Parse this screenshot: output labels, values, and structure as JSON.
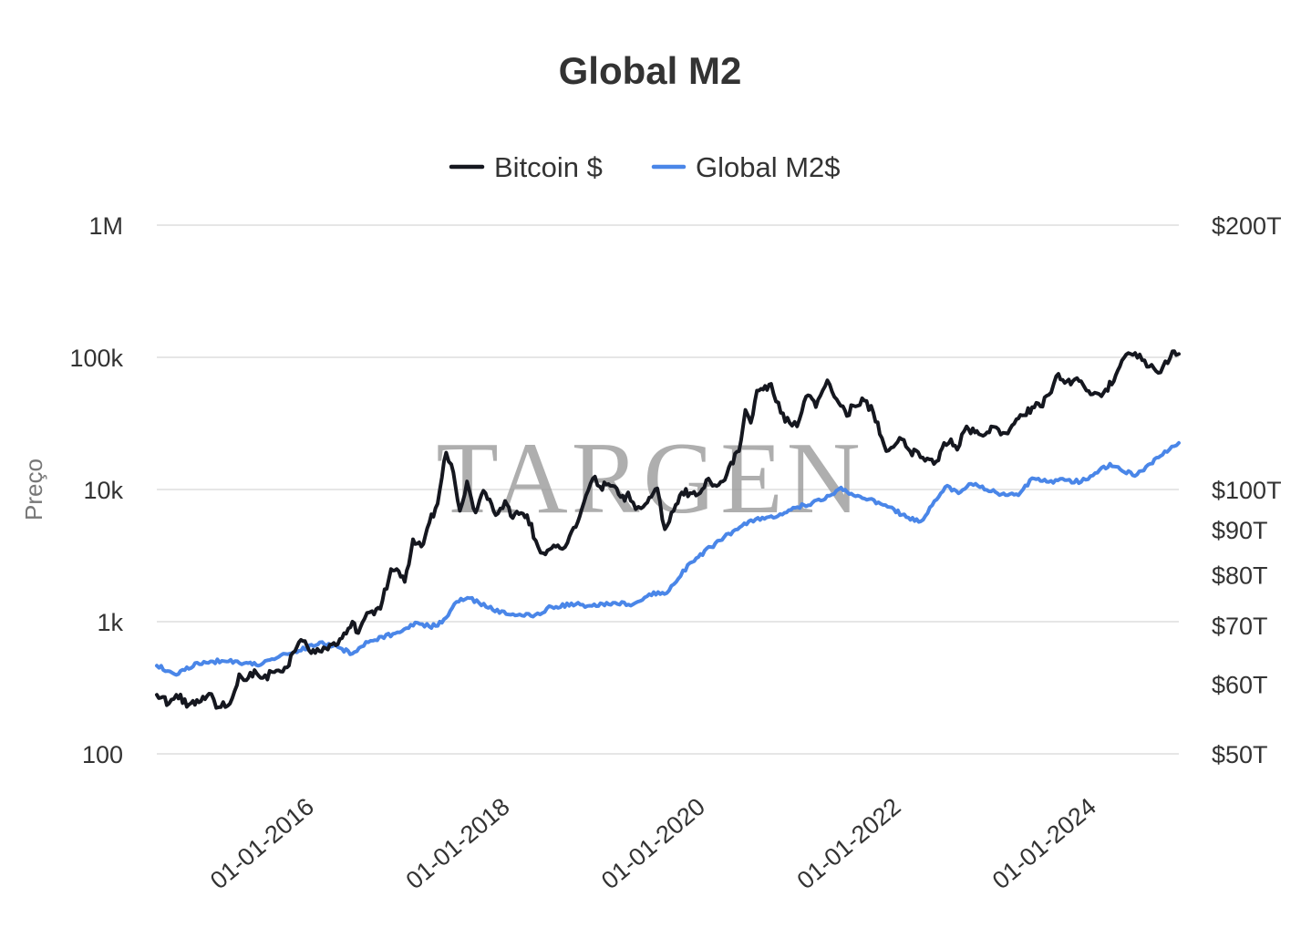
{
  "chart_data": {
    "type": "line",
    "title": "Global M2",
    "ylabel": "Preço",
    "xlabel": "",
    "watermark": "TARGEN",
    "x_range": [
      "2015-01-01",
      "2025-06-15"
    ],
    "x_ticks": [
      {
        "date": "2016-01-01",
        "label": "01-01-2016"
      },
      {
        "date": "2018-01-01",
        "label": "01-01-2018"
      },
      {
        "date": "2020-01-01",
        "label": "01-01-2020"
      },
      {
        "date": "2022-01-01",
        "label": "01-01-2022"
      },
      {
        "date": "2024-01-01",
        "label": "01-01-2024"
      }
    ],
    "y_left": {
      "scale": "log",
      "range": [
        100,
        1000000
      ],
      "ticks": [
        {
          "value": 100,
          "label": "100"
        },
        {
          "value": 1000,
          "label": "1k"
        },
        {
          "value": 10000,
          "label": "10k"
        },
        {
          "value": 100000,
          "label": "100k"
        },
        {
          "value": 1000000,
          "label": "1M"
        }
      ]
    },
    "y_right": {
      "scale": "log",
      "unit": "trillion USD",
      "ticks": [
        {
          "value": 50,
          "label": "$50T"
        },
        {
          "value": 60,
          "label": "$60T"
        },
        {
          "value": 70,
          "label": "$70T"
        },
        {
          "value": 80,
          "label": "$80T"
        },
        {
          "value": 90,
          "label": "$90T"
        },
        {
          "value": 100,
          "label": "$100T"
        },
        {
          "value": 200,
          "label": "$200T"
        }
      ]
    },
    "legend": {
      "position": "top-center"
    },
    "series": [
      {
        "name": "Bitcoin $",
        "axis": "left",
        "color": "#15171f",
        "points": [
          [
            "2015-01-01",
            280
          ],
          [
            "2015-02-15",
            240
          ],
          [
            "2015-03-15",
            280
          ],
          [
            "2015-05-01",
            236
          ],
          [
            "2015-06-15",
            250
          ],
          [
            "2015-07-15",
            285
          ],
          [
            "2015-08-20",
            225
          ],
          [
            "2015-10-01",
            240
          ],
          [
            "2015-11-05",
            400
          ],
          [
            "2015-12-01",
            360
          ],
          [
            "2016-01-01",
            430
          ],
          [
            "2016-02-01",
            375
          ],
          [
            "2016-03-15",
            415
          ],
          [
            "2016-05-01",
            450
          ],
          [
            "2016-06-15",
            700
          ],
          [
            "2016-07-15",
            655
          ],
          [
            "2016-08-15",
            580
          ],
          [
            "2016-10-01",
            615
          ],
          [
            "2016-11-15",
            740
          ],
          [
            "2017-01-01",
            1000
          ],
          [
            "2017-01-15",
            830
          ],
          [
            "2017-02-15",
            1050
          ],
          [
            "2017-03-15",
            1200
          ],
          [
            "2017-04-15",
            1250
          ],
          [
            "2017-05-25",
            2500
          ],
          [
            "2017-06-15",
            2500
          ],
          [
            "2017-07-15",
            2000
          ],
          [
            "2017-08-15",
            4200
          ],
          [
            "2017-09-15",
            3700
          ],
          [
            "2017-10-15",
            5600
          ],
          [
            "2017-11-15",
            7800
          ],
          [
            "2017-12-17",
            19000
          ],
          [
            "2018-01-05",
            15500
          ],
          [
            "2018-02-06",
            6900
          ],
          [
            "2018-03-05",
            11500
          ],
          [
            "2018-04-06",
            6700
          ],
          [
            "2018-05-05",
            9800
          ],
          [
            "2018-06-20",
            6400
          ],
          [
            "2018-07-25",
            8200
          ],
          [
            "2018-08-15",
            6300
          ],
          [
            "2018-09-15",
            6500
          ],
          [
            "2018-10-15",
            6400
          ],
          [
            "2018-11-25",
            3700
          ],
          [
            "2018-12-15",
            3300
          ],
          [
            "2019-01-15",
            3600
          ],
          [
            "2019-02-15",
            3600
          ],
          [
            "2019-03-15",
            3950
          ],
          [
            "2019-04-15",
            5200
          ],
          [
            "2019-05-15",
            7900
          ],
          [
            "2019-06-26",
            12500
          ],
          [
            "2019-07-15",
            10500
          ],
          [
            "2019-08-15",
            11000
          ],
          [
            "2019-09-15",
            10200
          ],
          [
            "2019-10-15",
            8200
          ],
          [
            "2019-10-28",
            9500
          ],
          [
            "2019-11-25",
            7100
          ],
          [
            "2019-12-15",
            7200
          ],
          [
            "2020-01-15",
            8700
          ],
          [
            "2020-02-14",
            10200
          ],
          [
            "2020-03-13",
            5000
          ],
          [
            "2020-04-15",
            6900
          ],
          [
            "2020-05-15",
            9500
          ],
          [
            "2020-06-15",
            9400
          ],
          [
            "2020-07-15",
            9200
          ],
          [
            "2020-08-15",
            11800
          ],
          [
            "2020-09-15",
            10800
          ],
          [
            "2020-10-15",
            11500
          ],
          [
            "2020-11-15",
            16000
          ],
          [
            "2020-12-15",
            19500
          ],
          [
            "2021-01-08",
            40000
          ],
          [
            "2021-01-28",
            32000
          ],
          [
            "2021-02-20",
            56000
          ],
          [
            "2021-03-15",
            57000
          ],
          [
            "2021-04-14",
            63000
          ],
          [
            "2021-05-20",
            38000
          ],
          [
            "2021-06-22",
            32000
          ],
          [
            "2021-07-20",
            30000
          ],
          [
            "2021-08-15",
            46000
          ],
          [
            "2021-09-07",
            51000
          ],
          [
            "2021-09-28",
            42000
          ],
          [
            "2021-11-10",
            67000
          ],
          [
            "2021-12-15",
            48000
          ],
          [
            "2022-01-22",
            36000
          ],
          [
            "2022-02-15",
            43000
          ],
          [
            "2022-03-28",
            47000
          ],
          [
            "2022-05-01",
            38000
          ],
          [
            "2022-06-18",
            19500
          ],
          [
            "2022-07-15",
            21000
          ],
          [
            "2022-08-15",
            24000
          ],
          [
            "2022-09-15",
            19500
          ],
          [
            "2022-10-15",
            19200
          ],
          [
            "2022-11-10",
            16500
          ],
          [
            "2022-12-30",
            16600
          ],
          [
            "2023-01-20",
            22500
          ],
          [
            "2023-02-15",
            24000
          ],
          [
            "2023-03-10",
            20000
          ],
          [
            "2023-04-14",
            30000
          ],
          [
            "2023-05-15",
            27000
          ],
          [
            "2023-06-15",
            25500
          ],
          [
            "2023-07-15",
            30000
          ],
          [
            "2023-08-20",
            26000
          ],
          [
            "2023-09-15",
            26500
          ],
          [
            "2023-10-25",
            34500
          ],
          [
            "2023-11-15",
            36500
          ],
          [
            "2023-12-15",
            42000
          ],
          [
            "2024-01-15",
            42500
          ],
          [
            "2024-02-15",
            52000
          ],
          [
            "2024-03-14",
            72000
          ],
          [
            "2024-04-15",
            64000
          ],
          [
            "2024-05-15",
            66000
          ],
          [
            "2024-06-15",
            66000
          ],
          [
            "2024-07-05",
            56000
          ],
          [
            "2024-08-05",
            54000
          ],
          [
            "2024-09-07",
            54000
          ],
          [
            "2024-10-15",
            66000
          ],
          [
            "2024-11-22",
            99000
          ],
          [
            "2024-12-17",
            106000
          ],
          [
            "2025-01-20",
            105000
          ],
          [
            "2025-02-25",
            85000
          ],
          [
            "2025-04-08",
            77000
          ],
          [
            "2025-05-22",
            111000
          ],
          [
            "2025-06-05",
            104000
          ],
          [
            "2025-06-15",
            106000
          ]
        ]
      },
      {
        "name": "Global M2$",
        "axis": "right",
        "color": "#4a86e8",
        "points": [
          [
            "2015-01-01",
            63.0
          ],
          [
            "2015-03-15",
            61.5
          ],
          [
            "2015-06-01",
            63.5
          ],
          [
            "2015-09-01",
            63.8
          ],
          [
            "2015-12-01",
            63.5
          ],
          [
            "2016-01-15",
            63.0
          ],
          [
            "2016-04-01",
            64.5
          ],
          [
            "2016-06-15",
            65.5
          ],
          [
            "2016-09-01",
            67.0
          ],
          [
            "2016-11-15",
            66.0
          ],
          [
            "2016-12-31",
            65.0
          ],
          [
            "2017-03-01",
            67.0
          ],
          [
            "2017-06-01",
            68.5
          ],
          [
            "2017-09-01",
            70.5
          ],
          [
            "2017-10-15",
            69.8
          ],
          [
            "2017-12-01",
            70.5
          ],
          [
            "2018-01-25",
            74.5
          ],
          [
            "2018-03-15",
            75.2
          ],
          [
            "2018-05-15",
            73.5
          ],
          [
            "2018-08-15",
            72.0
          ],
          [
            "2018-11-15",
            72.0
          ],
          [
            "2019-01-15",
            73.5
          ],
          [
            "2019-04-15",
            74.0
          ],
          [
            "2019-06-15",
            73.7
          ],
          [
            "2019-09-01",
            74.3
          ],
          [
            "2019-11-15",
            74.0
          ],
          [
            "2020-01-15",
            76.0
          ],
          [
            "2020-03-20",
            76.2
          ],
          [
            "2020-04-15",
            78.0
          ],
          [
            "2020-06-15",
            82.5
          ],
          [
            "2020-09-01",
            86.0
          ],
          [
            "2020-12-01",
            90.0
          ],
          [
            "2021-02-15",
            92.5
          ],
          [
            "2021-05-01",
            93.0
          ],
          [
            "2021-08-15",
            96.0
          ],
          [
            "2021-11-01",
            97.5
          ],
          [
            "2021-12-31",
            100.5
          ],
          [
            "2022-02-15",
            98.5
          ],
          [
            "2022-04-15",
            97.5
          ],
          [
            "2022-06-15",
            96.0
          ],
          [
            "2022-09-01",
            93.0
          ],
          [
            "2022-10-25",
            92.0
          ],
          [
            "2022-12-15",
            97.0
          ],
          [
            "2023-02-01",
            101.0
          ],
          [
            "2023-03-15",
            99.0
          ],
          [
            "2023-05-01",
            101.5
          ],
          [
            "2023-07-15",
            99.5
          ],
          [
            "2023-09-15",
            98.5
          ],
          [
            "2023-10-25",
            98.5
          ],
          [
            "2023-12-15",
            103.0
          ],
          [
            "2024-02-15",
            102.0
          ],
          [
            "2024-04-15",
            102.5
          ],
          [
            "2024-06-15",
            102.0
          ],
          [
            "2024-08-15",
            104.5
          ],
          [
            "2024-10-01",
            107.0
          ],
          [
            "2024-11-15",
            105.0
          ],
          [
            "2025-01-10",
            104.0
          ],
          [
            "2025-03-01",
            107.0
          ],
          [
            "2025-04-15",
            109.5
          ],
          [
            "2025-06-15",
            113.0
          ]
        ]
      }
    ]
  }
}
